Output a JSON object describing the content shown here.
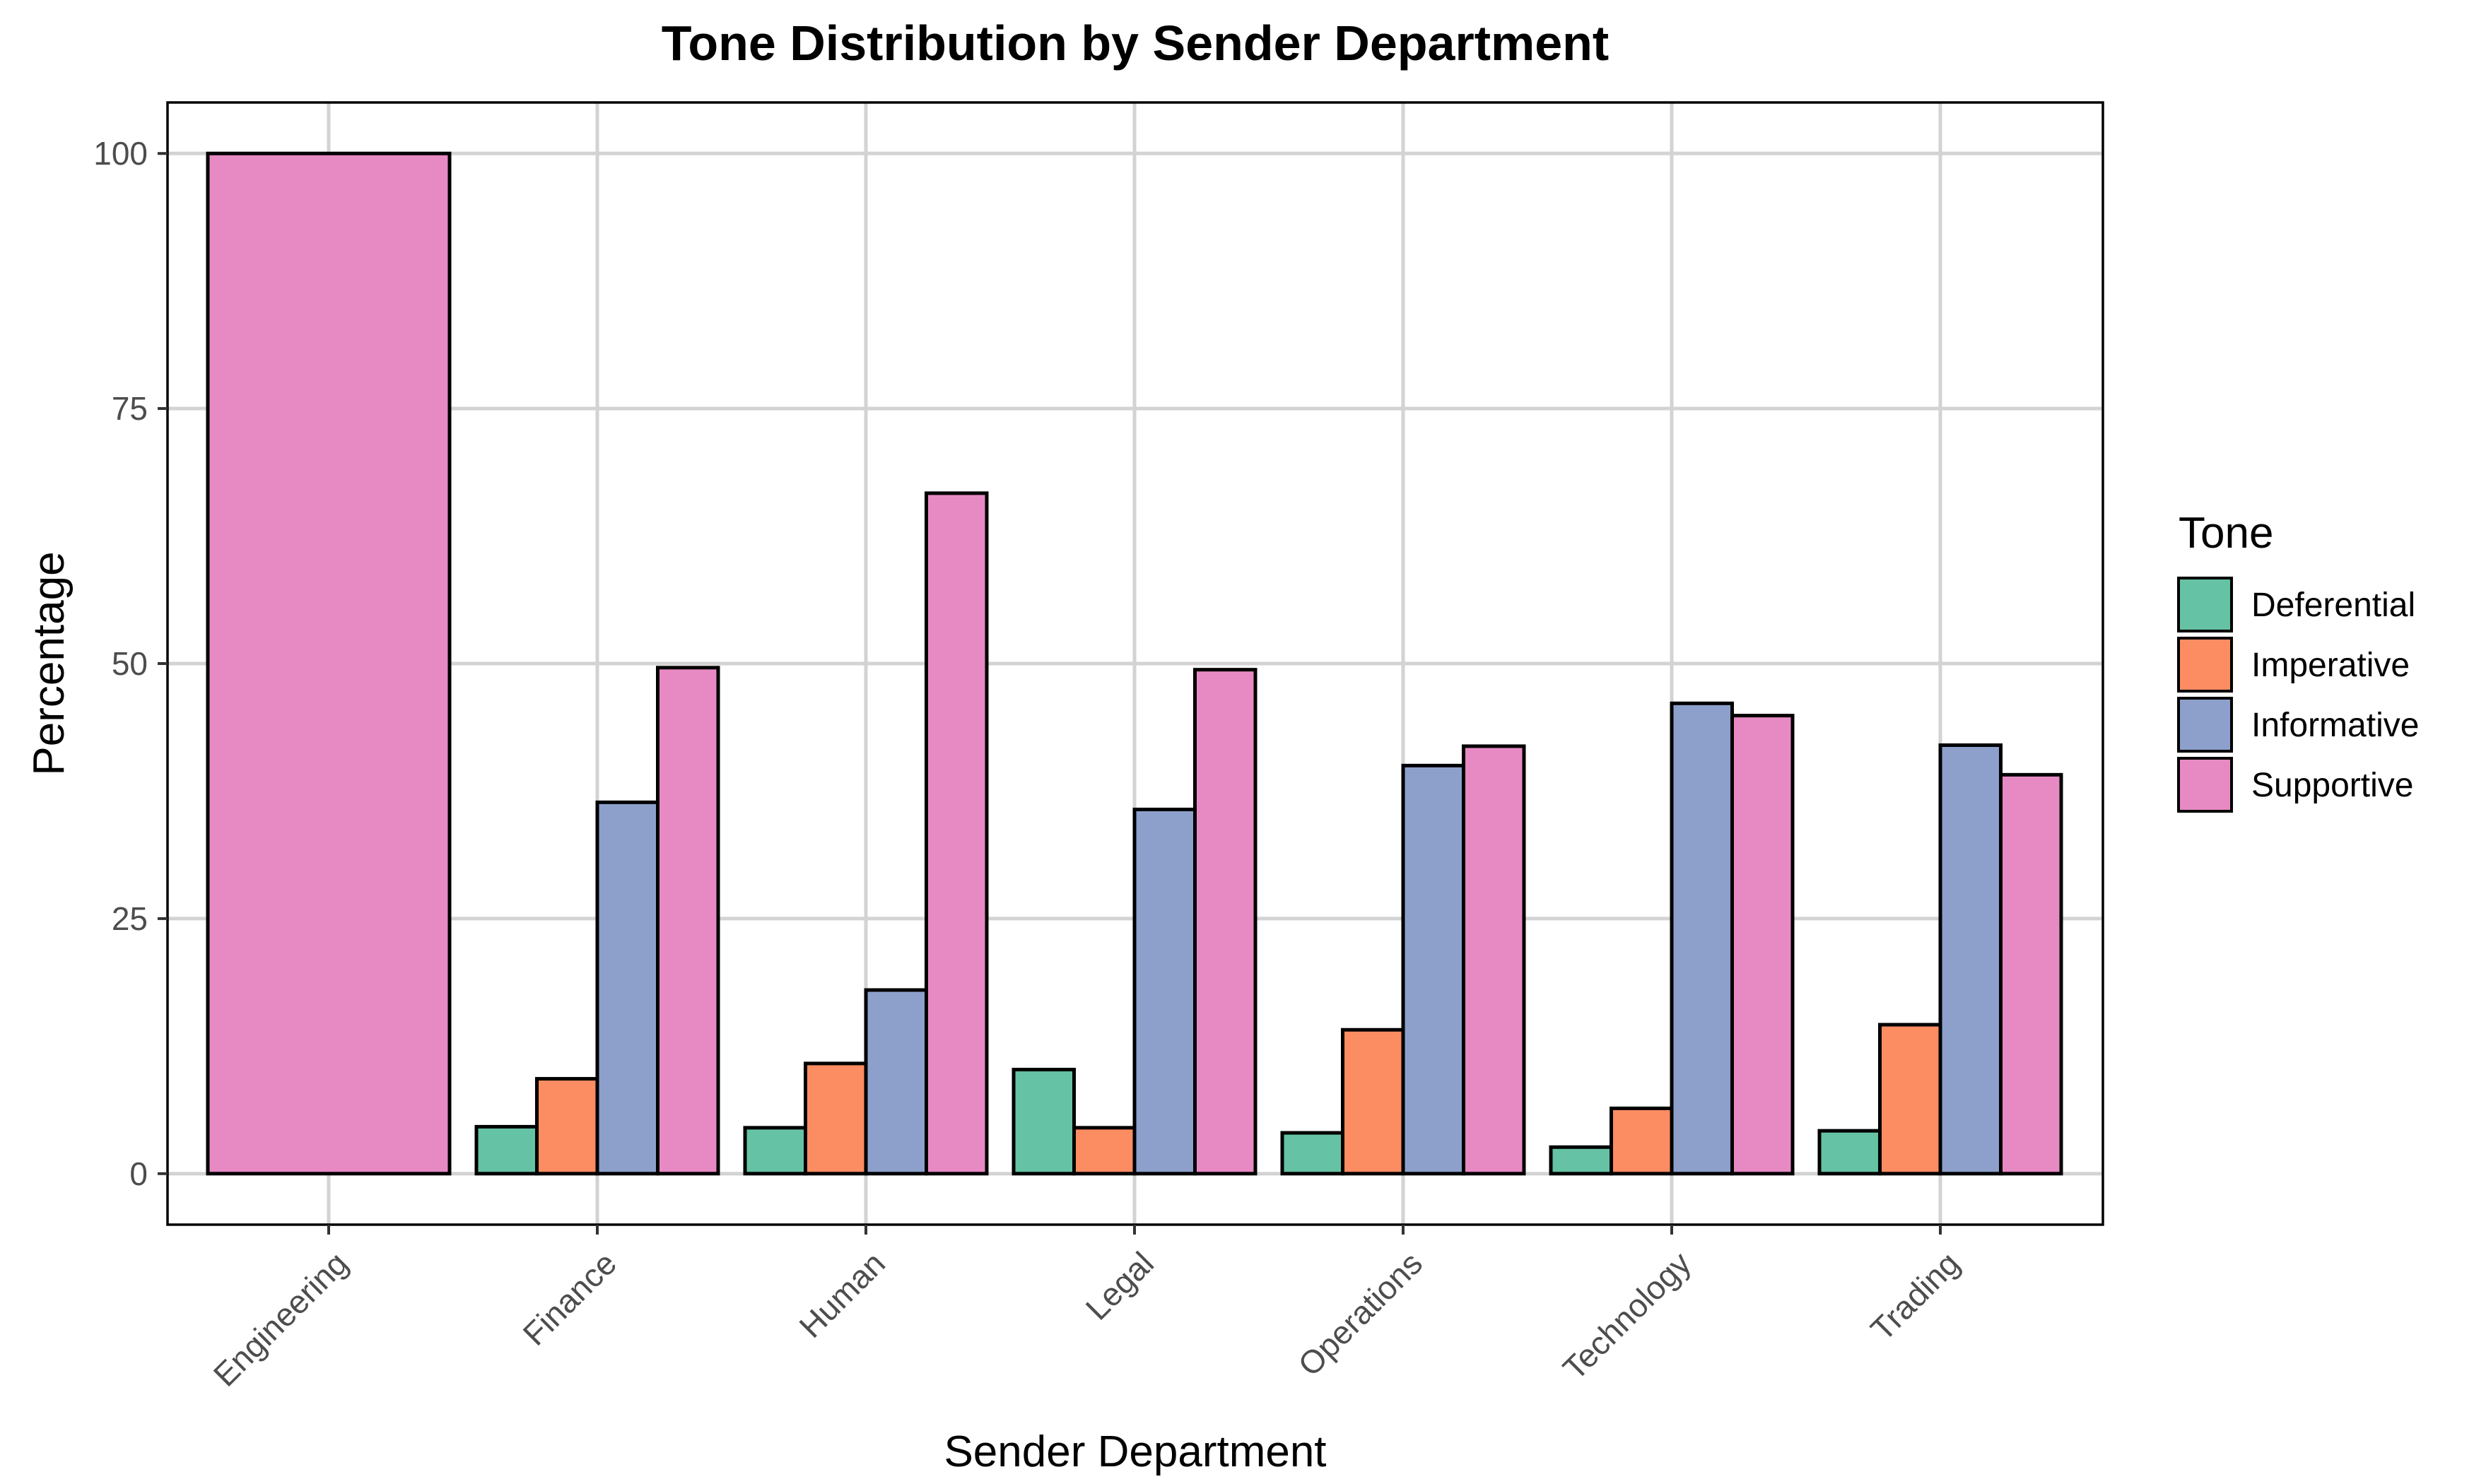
{
  "chart_data": {
    "type": "bar",
    "title": "Tone Distribution by Sender Department",
    "xlabel": "Sender Department",
    "ylabel": "Percentage",
    "ylim": [
      -5,
      105
    ],
    "yticks": [
      0,
      25,
      50,
      75,
      100
    ],
    "grid": true,
    "legend": {
      "title": "Tone",
      "placement": "right"
    },
    "categories": [
      "Engineering",
      "Finance",
      "Human",
      "Legal",
      "Operations",
      "Technology",
      "Trading"
    ],
    "series": [
      {
        "name": "Deferential",
        "color": "#66c2a5",
        "values": [
          null,
          4.6,
          4.5,
          10.2,
          4.0,
          2.6,
          4.2
        ]
      },
      {
        "name": "Imperative",
        "color": "#fc8d62",
        "values": [
          null,
          9.3,
          10.8,
          4.5,
          14.1,
          6.4,
          14.6
        ]
      },
      {
        "name": "Informative",
        "color": "#8da0cb",
        "values": [
          null,
          36.4,
          18.0,
          35.7,
          40.0,
          46.1,
          42.0
        ]
      },
      {
        "name": "Supportive",
        "color": "#e78ac3",
        "values": [
          100.0,
          49.6,
          66.7,
          49.4,
          41.9,
          44.9,
          39.1
        ]
      }
    ]
  }
}
